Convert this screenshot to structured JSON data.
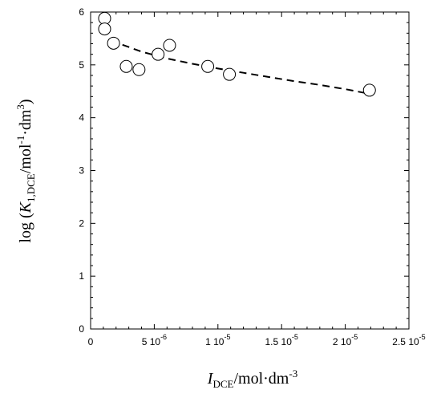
{
  "chart_data": {
    "type": "scatter",
    "xlabel": {
      "main": "I",
      "sub": "DCE",
      "rest": "/mol·dm",
      "sup": "-3"
    },
    "ylabel": {
      "prefix": "log (",
      "main": "K",
      "sub": "1,DCE",
      "mid1": "/mol",
      "sup1": "-1",
      "mid2": "·dm",
      "sup2": "3",
      "suffix": ")"
    },
    "xlim": [
      0,
      2.5e-05
    ],
    "ylim": [
      0,
      6
    ],
    "x_ticks": [
      {
        "value": 0,
        "mantissa": "0",
        "exp": ""
      },
      {
        "value": 5e-06,
        "mantissa": "5 10",
        "exp": "-6"
      },
      {
        "value": 1e-05,
        "mantissa": "1 10",
        "exp": "-5"
      },
      {
        "value": 1.5e-05,
        "mantissa": "1.5 10",
        "exp": "-5"
      },
      {
        "value": 2e-05,
        "mantissa": "2 10",
        "exp": "-5"
      },
      {
        "value": 2.5e-05,
        "mantissa": "2.5 10",
        "exp": "-5"
      }
    ],
    "y_ticks": [
      {
        "value": 0,
        "label": "0"
      },
      {
        "value": 1,
        "label": "1"
      },
      {
        "value": 2,
        "label": "2"
      },
      {
        "value": 3,
        "label": "3"
      },
      {
        "value": 4,
        "label": "4"
      },
      {
        "value": 5,
        "label": "5"
      },
      {
        "value": 6,
        "label": "6"
      }
    ],
    "grid": false,
    "points": [
      {
        "x": 1.1e-06,
        "y": 5.88
      },
      {
        "x": 1.1e-06,
        "y": 5.68
      },
      {
        "x": 1.8e-06,
        "y": 5.41
      },
      {
        "x": 2.8e-06,
        "y": 4.97
      },
      {
        "x": 3.8e-06,
        "y": 4.91
      },
      {
        "x": 5.3e-06,
        "y": 5.2
      },
      {
        "x": 6.2e-06,
        "y": 5.37
      },
      {
        "x": 9.2e-06,
        "y": 4.97
      },
      {
        "x": 1.09e-05,
        "y": 4.82
      },
      {
        "x": 2.19e-05,
        "y": 4.52
      }
    ],
    "fit_curve": {
      "style": "dashed",
      "x": [
        2.5e-06,
        4e-06,
        6e-06,
        8e-06,
        1e-05,
        1.2e-05,
        1.4e-05,
        1.6e-05,
        1.8e-05,
        2e-05,
        2.15e-05
      ],
      "y": [
        5.38,
        5.25,
        5.12,
        5.02,
        4.93,
        4.85,
        4.77,
        4.69,
        4.62,
        4.54,
        4.47
      ]
    }
  }
}
